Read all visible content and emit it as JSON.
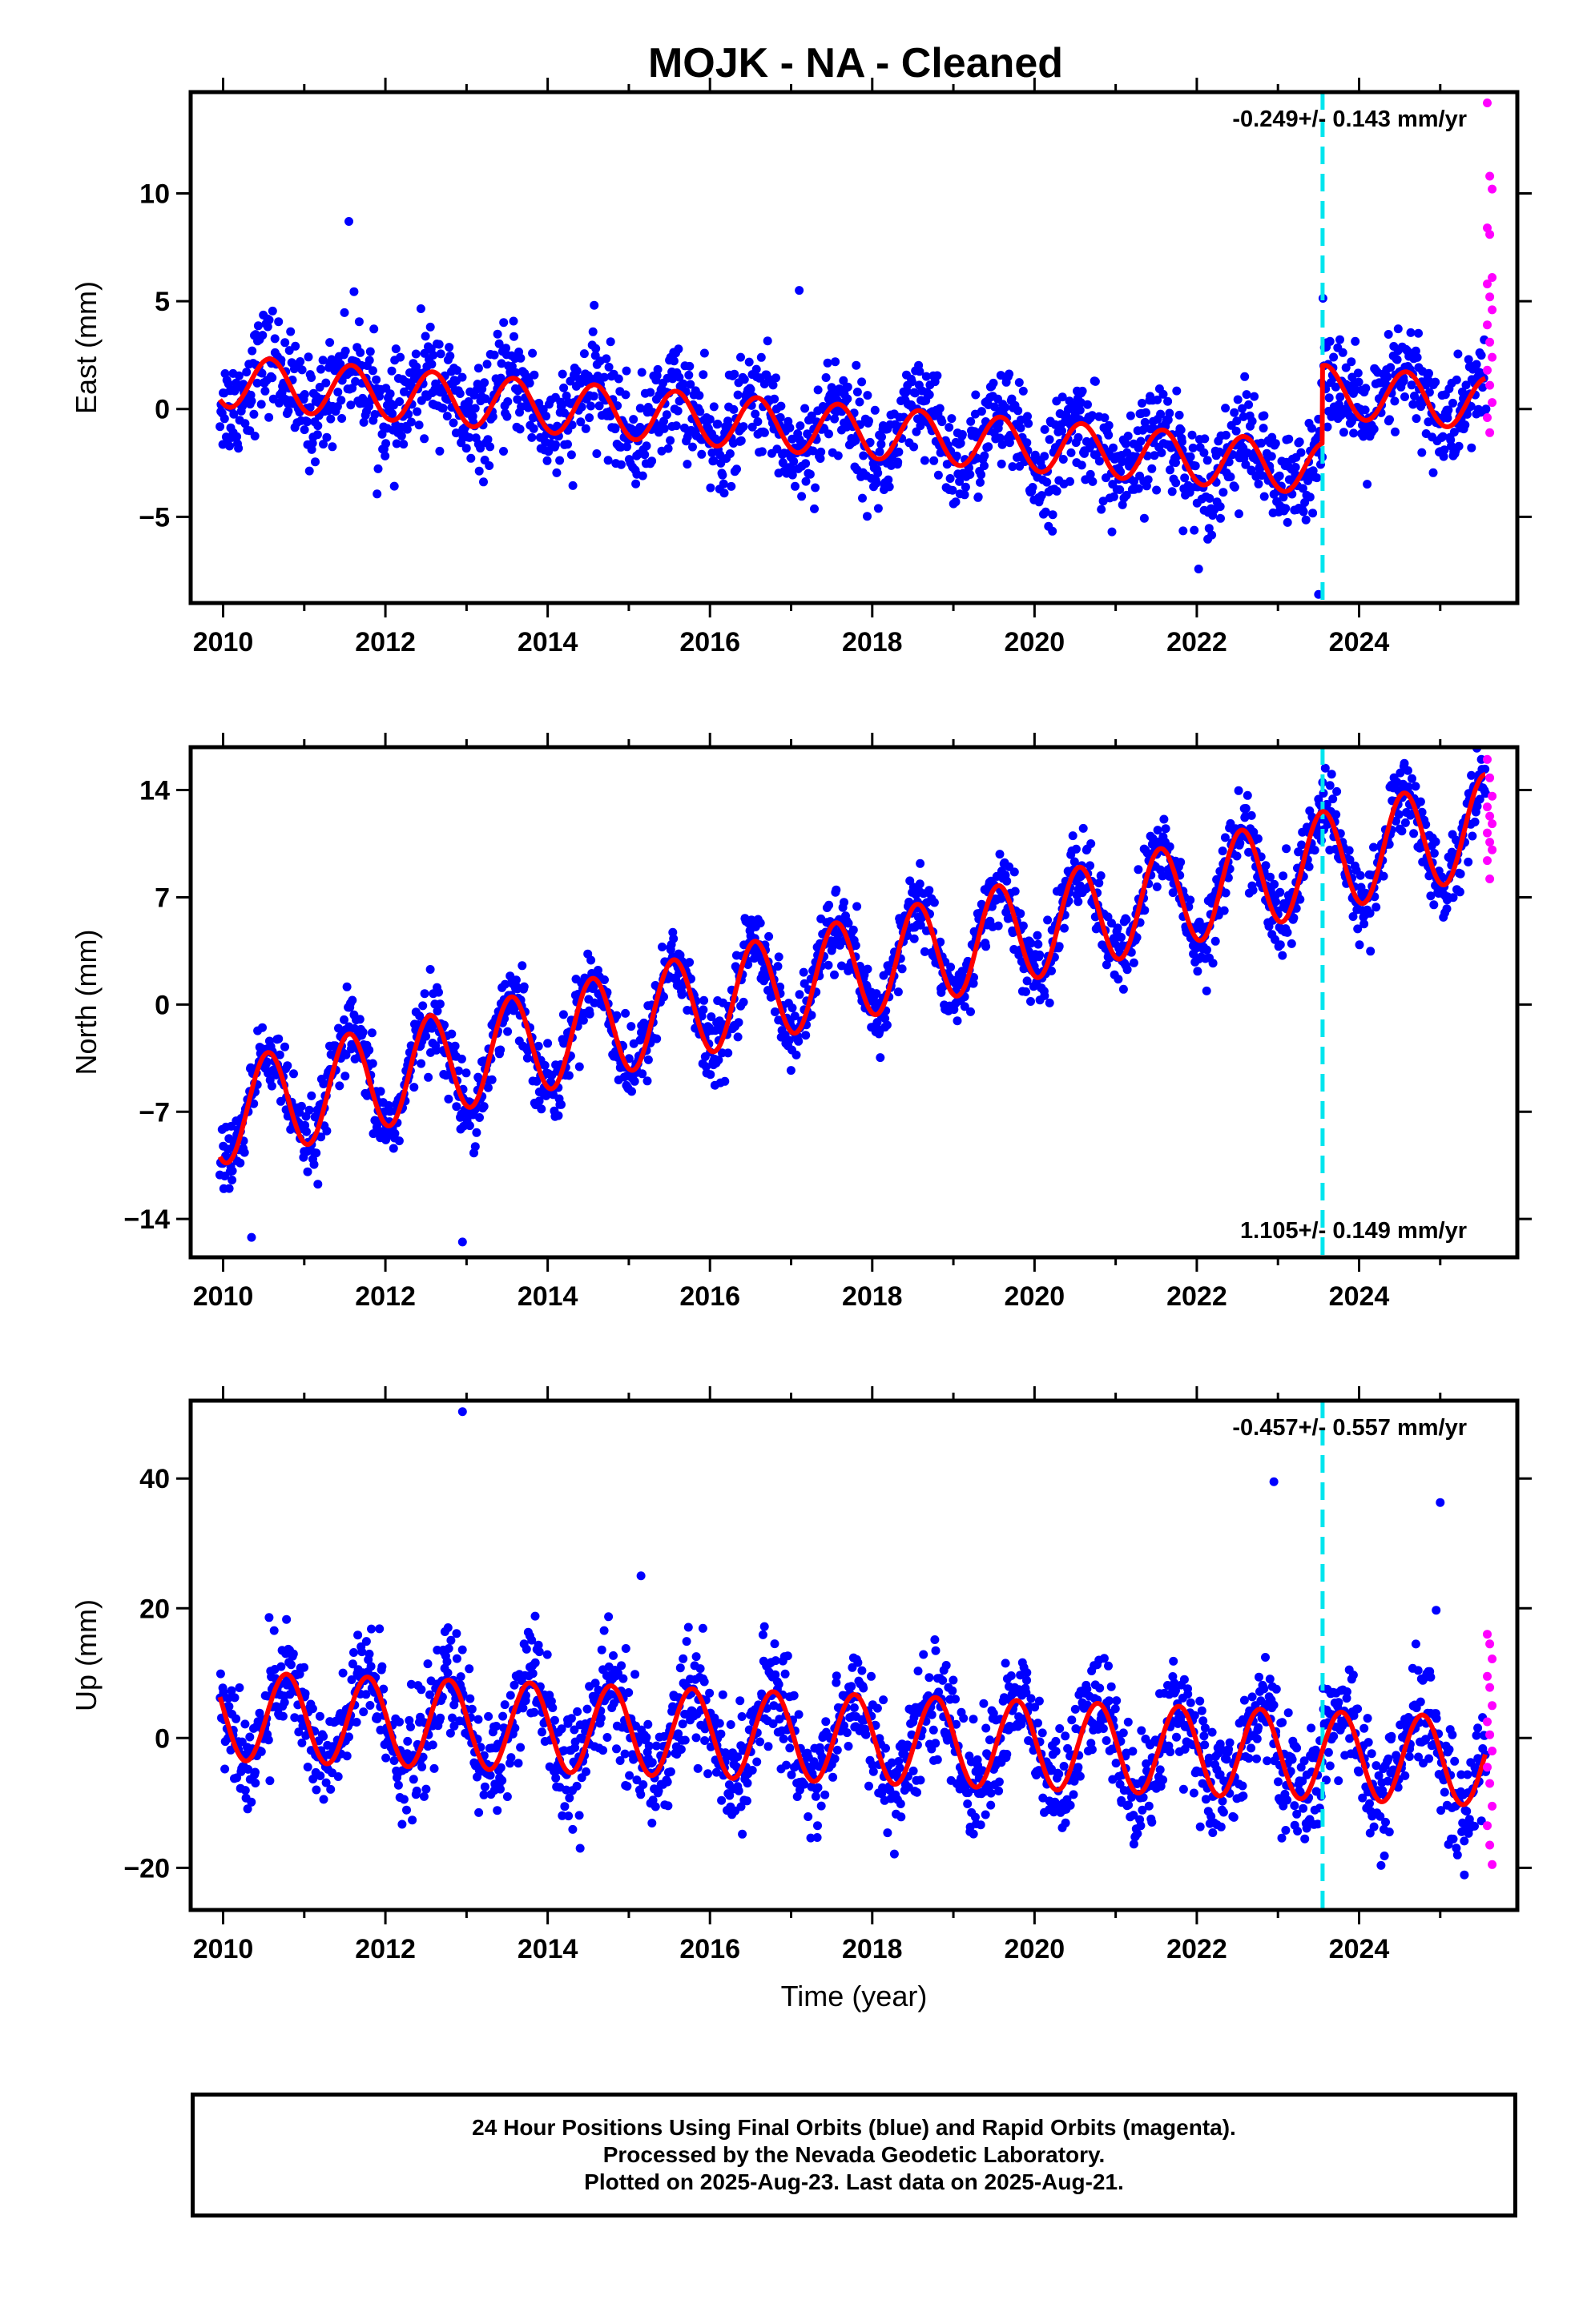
{
  "title": "MOJK  - NA - Cleaned",
  "colors": {
    "final_orbits": "#0000ff",
    "rapid_orbits": "#ff00ff",
    "model_fit": "#ff0000",
    "event_line": "#00e5ee"
  },
  "footer": {
    "line1": "24 Hour Positions Using Final Orbits (blue) and Rapid Orbits (magenta).",
    "line2": "Processed by the Nevada Geodetic Laboratory.",
    "line3": "Plotted on 2025-Aug-23. Last data on 2025-Aug-21."
  },
  "chart_data": [
    {
      "type": "scatter",
      "component": "east",
      "ylabel": "East (mm)",
      "xlabel": "",
      "xlim": [
        2009.6,
        2025.95
      ],
      "ylim": [
        -9,
        14.7
      ],
      "xticks": [
        2010,
        2012,
        2014,
        2016,
        2018,
        2020,
        2022,
        2024
      ],
      "yticks": [
        -5,
        0,
        5,
        10
      ],
      "ytick_labels": [
        "−5",
        "0",
        "5",
        "10"
      ],
      "rate_label": "-0.249+/- 0.143 mm/yr",
      "rate_position": "top-right",
      "event_line_year": 2023.55,
      "model": {
        "intercept": 1.3,
        "trend": -0.3,
        "annual_amp": 1.2,
        "annual_peak": 0.58,
        "steps": [
          {
            "year": 2023.55,
            "size": 3.6
          }
        ]
      },
      "scatter_sd": 1.2,
      "rapid_values": [
        14.2,
        10.8,
        10.2,
        8.4,
        8.1,
        6.1,
        5.8,
        5.2,
        4.6,
        3.9,
        3.1,
        2.4,
        1.8,
        1.1,
        0.3,
        -0.4,
        -1.1
      ],
      "rapid_x_range": [
        2025.58,
        2025.64
      ],
      "outliers": [
        {
          "x": 2011.55,
          "y": 8.7
        },
        {
          "x": 2017.1,
          "y": 5.5
        },
        {
          "x": 2023.5,
          "y": -8.6
        }
      ]
    },
    {
      "type": "scatter",
      "component": "north",
      "ylabel": "North (mm)",
      "xlabel": "",
      "xlim": [
        2009.6,
        2025.95
      ],
      "ylim": [
        -16.5,
        16.8
      ],
      "xticks": [
        2010,
        2012,
        2014,
        2016,
        2018,
        2020,
        2022,
        2024
      ],
      "yticks": [
        -14,
        -7,
        0,
        7,
        14
      ],
      "ytick_labels": [
        "−14",
        "−7",
        "0",
        "7",
        "14"
      ],
      "rate_label": "1.105+/- 0.149 mm/yr",
      "rate_position": "bottom-right",
      "event_line_year": 2023.55,
      "model": {
        "intercept": -7.1,
        "trend": 1.21,
        "annual_amp": 3.3,
        "annual_peak": 0.55,
        "steps": []
      },
      "scatter_sd": 1.2,
      "rapid_values": [
        16.0,
        14.8,
        13.6,
        12.9,
        12.3,
        11.8,
        11.2,
        10.6,
        10.1,
        9.4,
        8.2
      ],
      "rapid_x_range": [
        2025.58,
        2025.64
      ],
      "outliers": [
        {
          "x": 2010.35,
          "y": -15.2
        },
        {
          "x": 2012.95,
          "y": -15.5
        },
        {
          "x": 2023.55,
          "y": 14.5
        }
      ]
    },
    {
      "type": "scatter",
      "component": "up",
      "ylabel": "Up (mm)",
      "xlabel": "Time (year)",
      "xlim": [
        2009.6,
        2025.95
      ],
      "ylim": [
        -26.5,
        52
      ],
      "xticks": [
        2010,
        2012,
        2014,
        2016,
        2018,
        2020,
        2022,
        2024
      ],
      "yticks": [
        -20,
        0,
        20,
        40
      ],
      "ytick_labels": [
        "−20",
        "0",
        "20",
        "40"
      ],
      "rate_label": "-0.457+/- 0.557 mm/yr",
      "rate_position": "top-right",
      "event_line_year": 2023.55,
      "model": {
        "intercept": 3.4,
        "trend": -0.45,
        "annual_amp": 6.8,
        "annual_peak": 0.78,
        "steps": []
      },
      "scatter_sd": 4.2,
      "rapid_values": [
        16.0,
        14.5,
        12.2,
        9.5,
        7.8,
        5.0,
        2.5,
        0.5,
        -2.0,
        -4.5,
        -7.0,
        -10.5,
        -13.5,
        -16.5,
        -19.5
      ],
      "rapid_x_range": [
        2025.58,
        2025.64
      ],
      "outliers": [
        {
          "x": 2012.95,
          "y": 50.3
        },
        {
          "x": 2022.95,
          "y": 39.5
        },
        {
          "x": 2025.0,
          "y": 36.3
        },
        {
          "x": 2015.15,
          "y": 25.0
        },
        {
          "x": 2024.95,
          "y": 19.7
        },
        {
          "x": 2014.4,
          "y": -17.0
        }
      ]
    }
  ]
}
